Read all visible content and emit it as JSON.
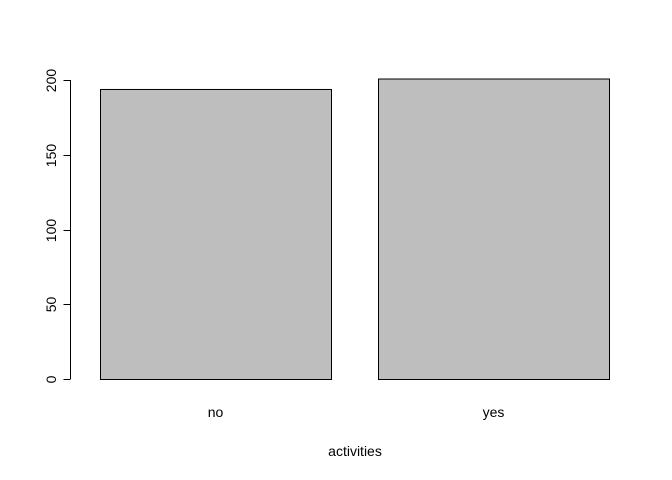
{
  "chart_data": {
    "type": "bar",
    "categories": [
      "no",
      "yes"
    ],
    "values": [
      194,
      201
    ],
    "title": "",
    "xlabel": "activities",
    "ylabel": "",
    "ylim": [
      0,
      200
    ],
    "yticks": [
      0,
      50,
      100,
      150,
      200
    ],
    "ytick_labels": [
      "0",
      "50",
      "100",
      "150",
      "200"
    ],
    "grid": false,
    "legend": "none",
    "colors": {
      "bar_fill": "#bebebe",
      "bar_stroke": "#000000",
      "axis": "#000000",
      "text": "#000000"
    }
  }
}
